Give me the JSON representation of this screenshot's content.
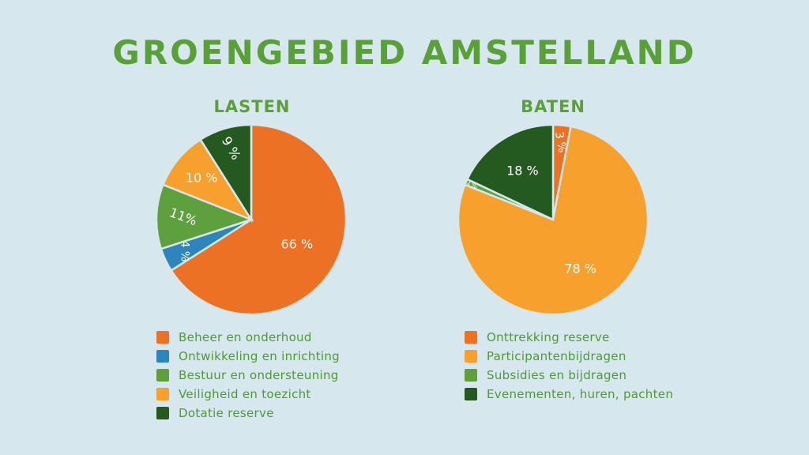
{
  "title": "GROENGEBIED AMSTELLAND",
  "chart_data": [
    {
      "type": "pie",
      "title": "LASTEN",
      "slices": [
        {
          "name": "Beheer en onderhoud",
          "value": 66,
          "label": "66 %",
          "color": "#ed7125"
        },
        {
          "name": "Ontwikkeling en inrichting",
          "value": 4,
          "label": "4 %",
          "color": "#2c86bd"
        },
        {
          "name": "Bestuur en ondersteuning",
          "value": 11,
          "label": "11%",
          "color": "#5fa03e"
        },
        {
          "name": "Veiligheid en toezicht",
          "value": 10,
          "label": "10 %",
          "color": "#f7a02d"
        },
        {
          "name": "Dotatie reserve",
          "value": 9,
          "label": "9 %",
          "color": "#245a1f"
        }
      ]
    },
    {
      "type": "pie",
      "title": "BATEN",
      "slices": [
        {
          "name": "Onttrekking reserve",
          "value": 3,
          "label": "3 %",
          "color": "#ed7125"
        },
        {
          "name": "Participantenbijdragen",
          "value": 78,
          "label": "78 %",
          "color": "#f7a02d"
        },
        {
          "name": "Subsidies en bijdragen",
          "value": 1,
          "label": "1%",
          "color": "#5fa03e"
        },
        {
          "name": "Evenementen, huren, pachten",
          "value": 18,
          "label": "18 %",
          "color": "#245a1f"
        }
      ]
    }
  ]
}
